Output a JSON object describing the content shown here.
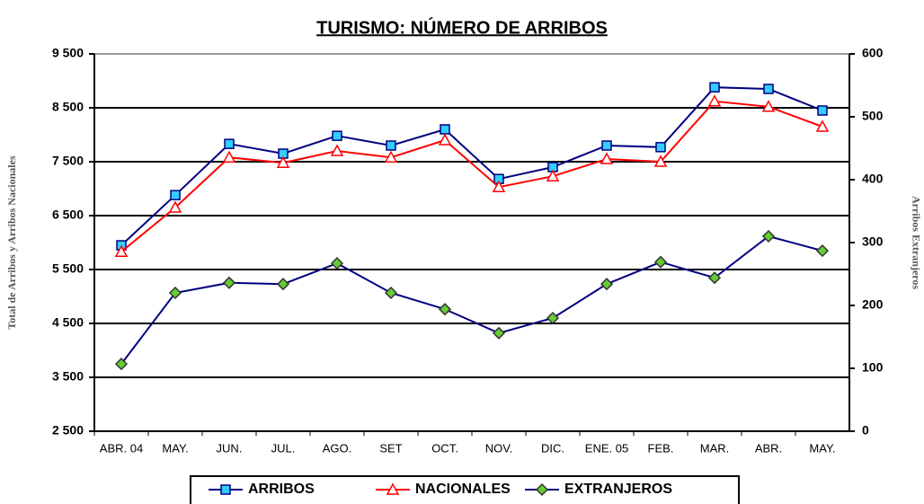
{
  "chart_data": {
    "type": "line",
    "title": "TURISMO: NÚMERO DE ARRIBOS",
    "y_label": "Total de Arribos y Arribos Nacionales",
    "y2_label": "Arribos Extranjeros",
    "categories": [
      "ABR. 04",
      "MAY.",
      "JUN.",
      "JUL.",
      "AGO.",
      "SET",
      "OCT.",
      "NOV.",
      "DIC.",
      "ENE. 05",
      "FEB.",
      "MAR.",
      "ABR.",
      "MAY."
    ],
    "series": [
      {
        "name": "ARRIBOS",
        "color": "#000080",
        "marker": "square",
        "marker_color": "#33ccff",
        "values": [
          5950,
          6880,
          7830,
          7650,
          7980,
          7800,
          8100,
          7180,
          7400,
          7800,
          7770,
          8880,
          8850,
          8450
        ]
      },
      {
        "name": "NACIONALES",
        "color": "#ff0000",
        "marker": "triangle",
        "marker_color": "#ffffff",
        "values": [
          5830,
          6650,
          7580,
          7480,
          7700,
          7580,
          7900,
          7030,
          7230,
          7550,
          7500,
          8620,
          8520,
          8150
        ]
      },
      {
        "name": "EXTRANJEROS",
        "color": "#000080",
        "marker": "diamond",
        "marker_color": "#66cc33",
        "axis": "y2",
        "values": [
          107,
          220,
          236,
          234,
          267,
          220,
          194,
          156,
          180,
          234,
          269,
          244,
          310,
          287
        ]
      }
    ],
    "ylim": [
      2500,
      9500
    ],
    "yticks": [
      {
        "value": 2500,
        "label": "2 500"
      },
      {
        "value": 3500,
        "label": "3 500"
      },
      {
        "value": 4500,
        "label": "4 500"
      },
      {
        "value": 5500,
        "label": "5 500"
      },
      {
        "value": 6500,
        "label": "6 500"
      },
      {
        "value": 7500,
        "label": "7 500"
      },
      {
        "value": 8500,
        "label": "8 500"
      },
      {
        "value": 9500,
        "label": "9 500"
      }
    ],
    "y2lim": [
      0,
      600
    ],
    "y2ticks": [
      0,
      100,
      200,
      300,
      400,
      500,
      600
    ],
    "grid": true,
    "legend": "bottom"
  }
}
